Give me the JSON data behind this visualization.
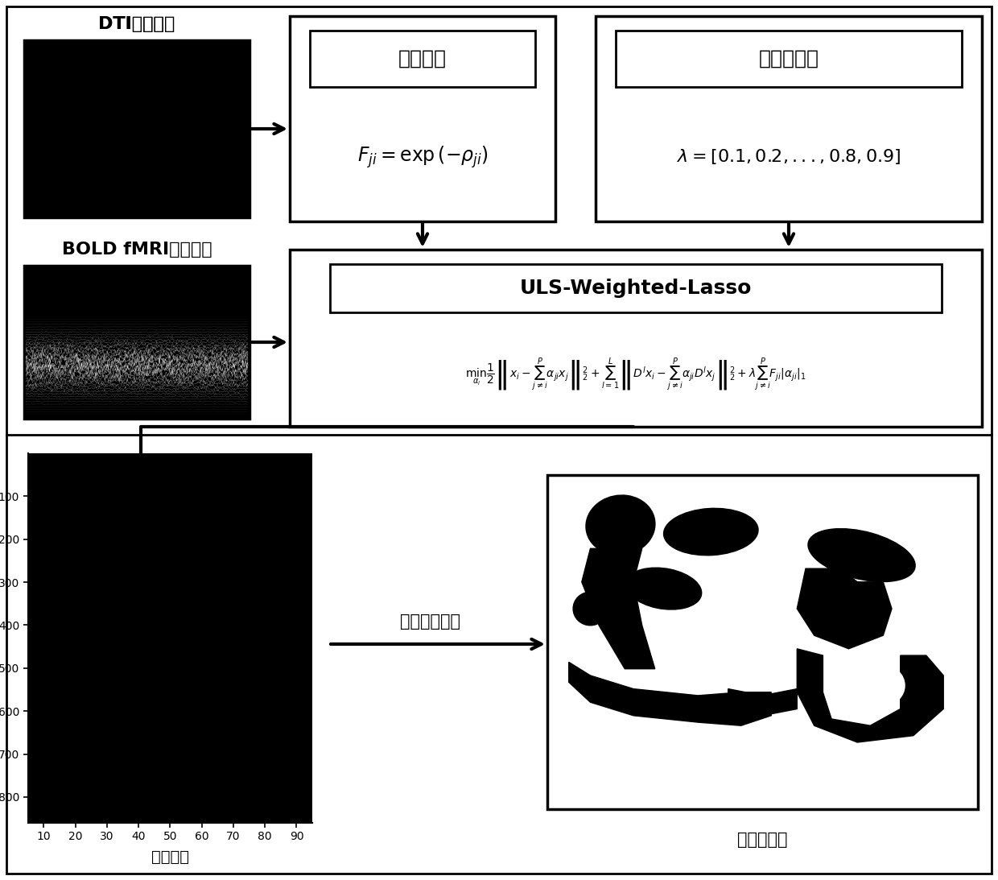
{
  "bg_color": "#ffffff",
  "label_dti": "DTI连接矩阵",
  "label_bold": "BOLD fMRI时间序列",
  "label_weight": "权值矩阵",
  "label_reg": "正则化参数",
  "label_uls": "ULS-Weighted-Lasso",
  "label_hyperedge": "超边集合",
  "label_hypernet": "多模态超网",
  "label_remove": "去除重复超边",
  "formula_weight": "$F_{ji}=\\exp\\left(-\\rho_{ji}\\right)$",
  "formula_reg": "$\\lambda=[0.1,0.2,...,0.8,0.9]$",
  "formula_uls_left": "$\\underset{\\alpha_i}{\\min}\\dfrac{1}{2}\\left\\|x_i-\\sum_{j\\neq i}^P\\alpha_{ji}x_j\\right\\|_2^2+\\sum_{l=1}^L\\left\\|D^lx_i-\\sum_{j\\neq i}^P\\alpha_{ji}D^lx_j\\right\\|_2^2+\\lambda\\sum_{j\\neq i}^PF_{ji}|\\alpha_{ji}|_1$",
  "yticks_hyperedge": [
    100,
    200,
    300,
    400,
    500,
    600,
    700,
    800
  ],
  "xticks_hyperedge": [
    10,
    20,
    30,
    40,
    50,
    60,
    70,
    80,
    90
  ],
  "border_lw": 2.5,
  "inner_lw": 2.0
}
